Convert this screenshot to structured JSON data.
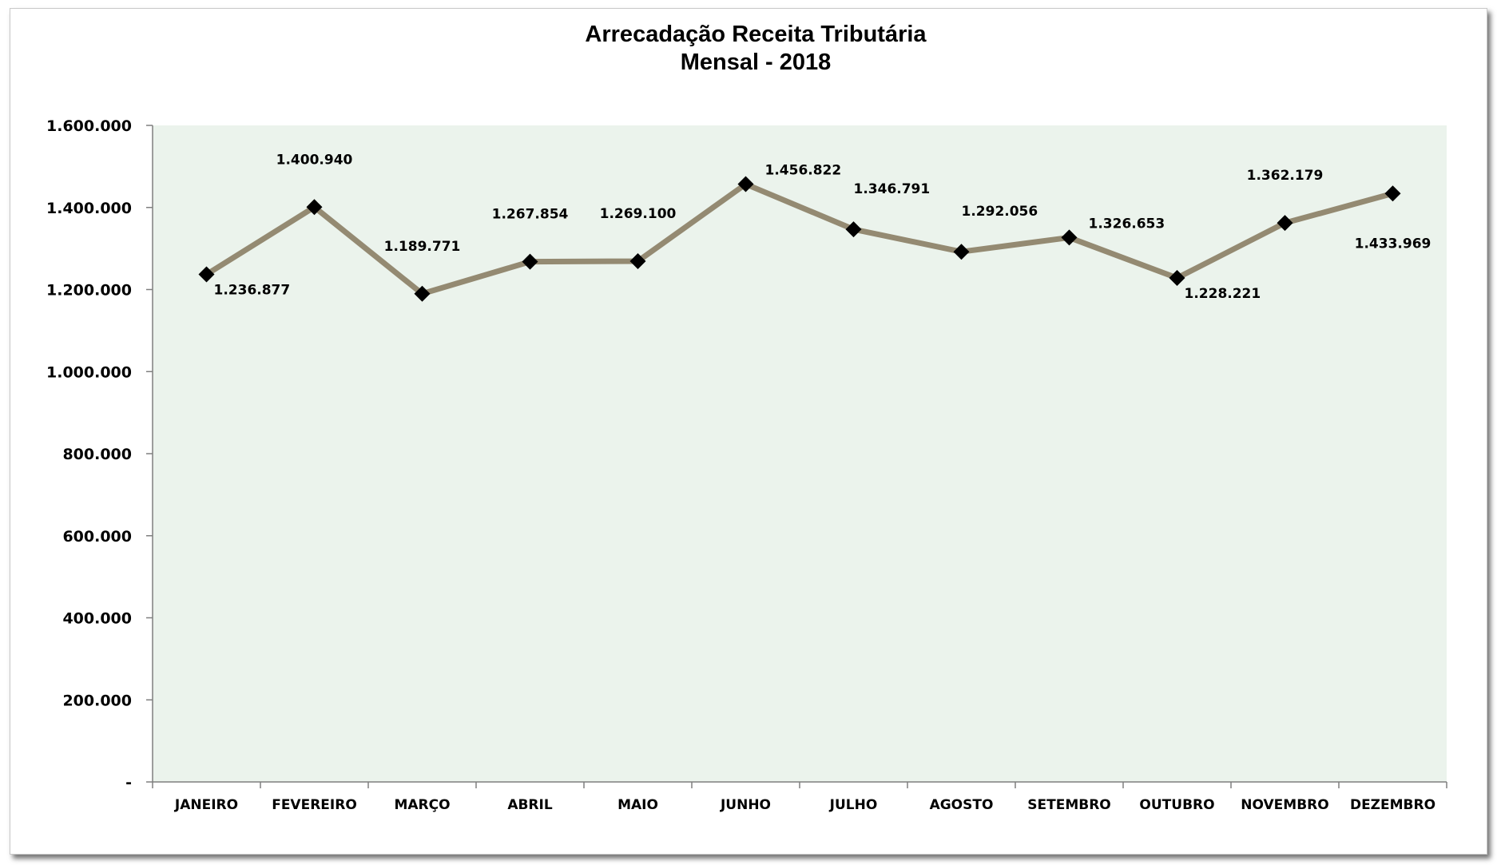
{
  "chart_data": {
    "type": "line",
    "title": "Arrecadação Receita Tributária",
    "subtitle": "Mensal - 2018",
    "xlabel": "",
    "ylabel": "",
    "categories": [
      "JANEIRO",
      "FEVEREIRO",
      "MARÇO",
      "ABRIL",
      "MAIO",
      "JUNHO",
      "JULHO",
      "AGOSTO",
      "SETEMBRO",
      "OUTUBRO",
      "NOVEMBRO",
      "DEZEMBRO"
    ],
    "series": [
      {
        "values": [
          1236877,
          1400940,
          1189771,
          1267854,
          1269100,
          1456822,
          1346791,
          1292056,
          1326653,
          1228221,
          1362179,
          1433969
        ],
        "data_labels": [
          "1.236.877",
          "1.400.940",
          "1.189.771",
          "1.267.854",
          "1.269.100",
          "1.456.822",
          "1.346.791",
          "1.292.056",
          "1.326.653",
          "1.228.221",
          "1.362.179",
          "1.433.969"
        ],
        "label_positions": [
          "below-right",
          "above",
          "above",
          "above",
          "above",
          "right",
          "above-right",
          "above-right",
          "right",
          "below-right",
          "above",
          "below"
        ],
        "line_color": "#948a72",
        "marker": "diamond",
        "marker_color": "#000000"
      }
    ],
    "ylim": [
      0,
      1600000
    ],
    "yticks": [
      0,
      200000,
      400000,
      600000,
      800000,
      1000000,
      1200000,
      1400000,
      1600000
    ],
    "ytick_labels": [
      "-",
      "200.000",
      "400.000",
      "600.000",
      "800.000",
      "1.000.000",
      "1.200.000",
      "1.400.000",
      "1.600.000"
    ],
    "grid": false,
    "legend": "none",
    "plot_background": "#ebf3ec"
  }
}
